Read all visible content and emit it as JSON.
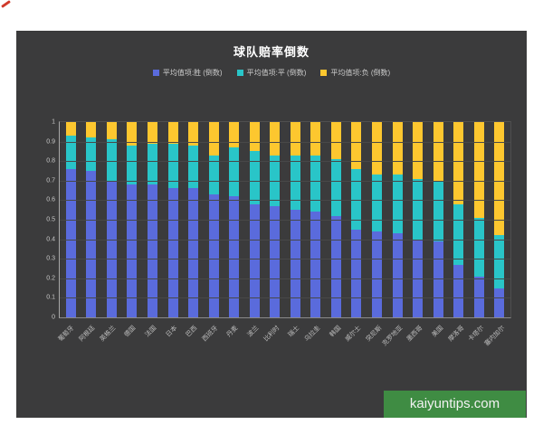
{
  "watermark": {
    "text": "kaiyuntips.com",
    "bg_color": "#3f8c43"
  },
  "colors": {
    "panel_bg": "#3b3b3c",
    "win": "#5a6bdc",
    "draw": "#29c5c8",
    "lose": "#fdc72f",
    "gridline": "#484848",
    "axis_text": "#c8c8c8"
  },
  "chart_data": {
    "type": "bar",
    "subtype": "stacked",
    "title": "球队赔率倒数",
    "legend_position": "top",
    "grid": true,
    "ylim": [
      0,
      1
    ],
    "yticks": [
      "1",
      "0.9",
      "0.8",
      "0.7",
      "0.6",
      "0.5",
      "0.4",
      "0.3",
      "0.2",
      "0.1",
      "0"
    ],
    "categories": [
      "葡萄牙",
      "阿根廷",
      "英格兰",
      "德国",
      "法国",
      "日本",
      "巴西",
      "西班牙",
      "丹麦",
      "波兰",
      "比利时",
      "瑞士",
      "乌拉圭",
      "韩国",
      "威尔士",
      "突尼斯",
      "克罗地亚",
      "墨西哥",
      "美国",
      "摩洛哥",
      "卡塔尔",
      "塞内加尔"
    ],
    "series": [
      {
        "name": "平均值项:胜 (倒数)",
        "color": "#5a6bdc",
        "values": [
          0.76,
          0.75,
          0.7,
          0.68,
          0.68,
          0.66,
          0.66,
          0.63,
          0.62,
          0.58,
          0.57,
          0.55,
          0.54,
          0.52,
          0.45,
          0.44,
          0.43,
          0.4,
          0.39,
          0.27,
          0.21,
          0.15
        ]
      },
      {
        "name": "平均值项:平 (倒数)",
        "color": "#29c5c8",
        "values": [
          0.17,
          0.17,
          0.21,
          0.2,
          0.21,
          0.23,
          0.22,
          0.2,
          0.25,
          0.27,
          0.26,
          0.28,
          0.29,
          0.29,
          0.31,
          0.29,
          0.3,
          0.31,
          0.31,
          0.31,
          0.3,
          0.27
        ]
      },
      {
        "name": "平均值项:负 (倒数)",
        "color": "#fdc72f",
        "values": [
          0.07,
          0.08,
          0.09,
          0.12,
          0.11,
          0.11,
          0.12,
          0.17,
          0.13,
          0.15,
          0.17,
          0.17,
          0.17,
          0.19,
          0.24,
          0.27,
          0.27,
          0.29,
          0.3,
          0.42,
          0.49,
          0.58
        ]
      }
    ]
  }
}
